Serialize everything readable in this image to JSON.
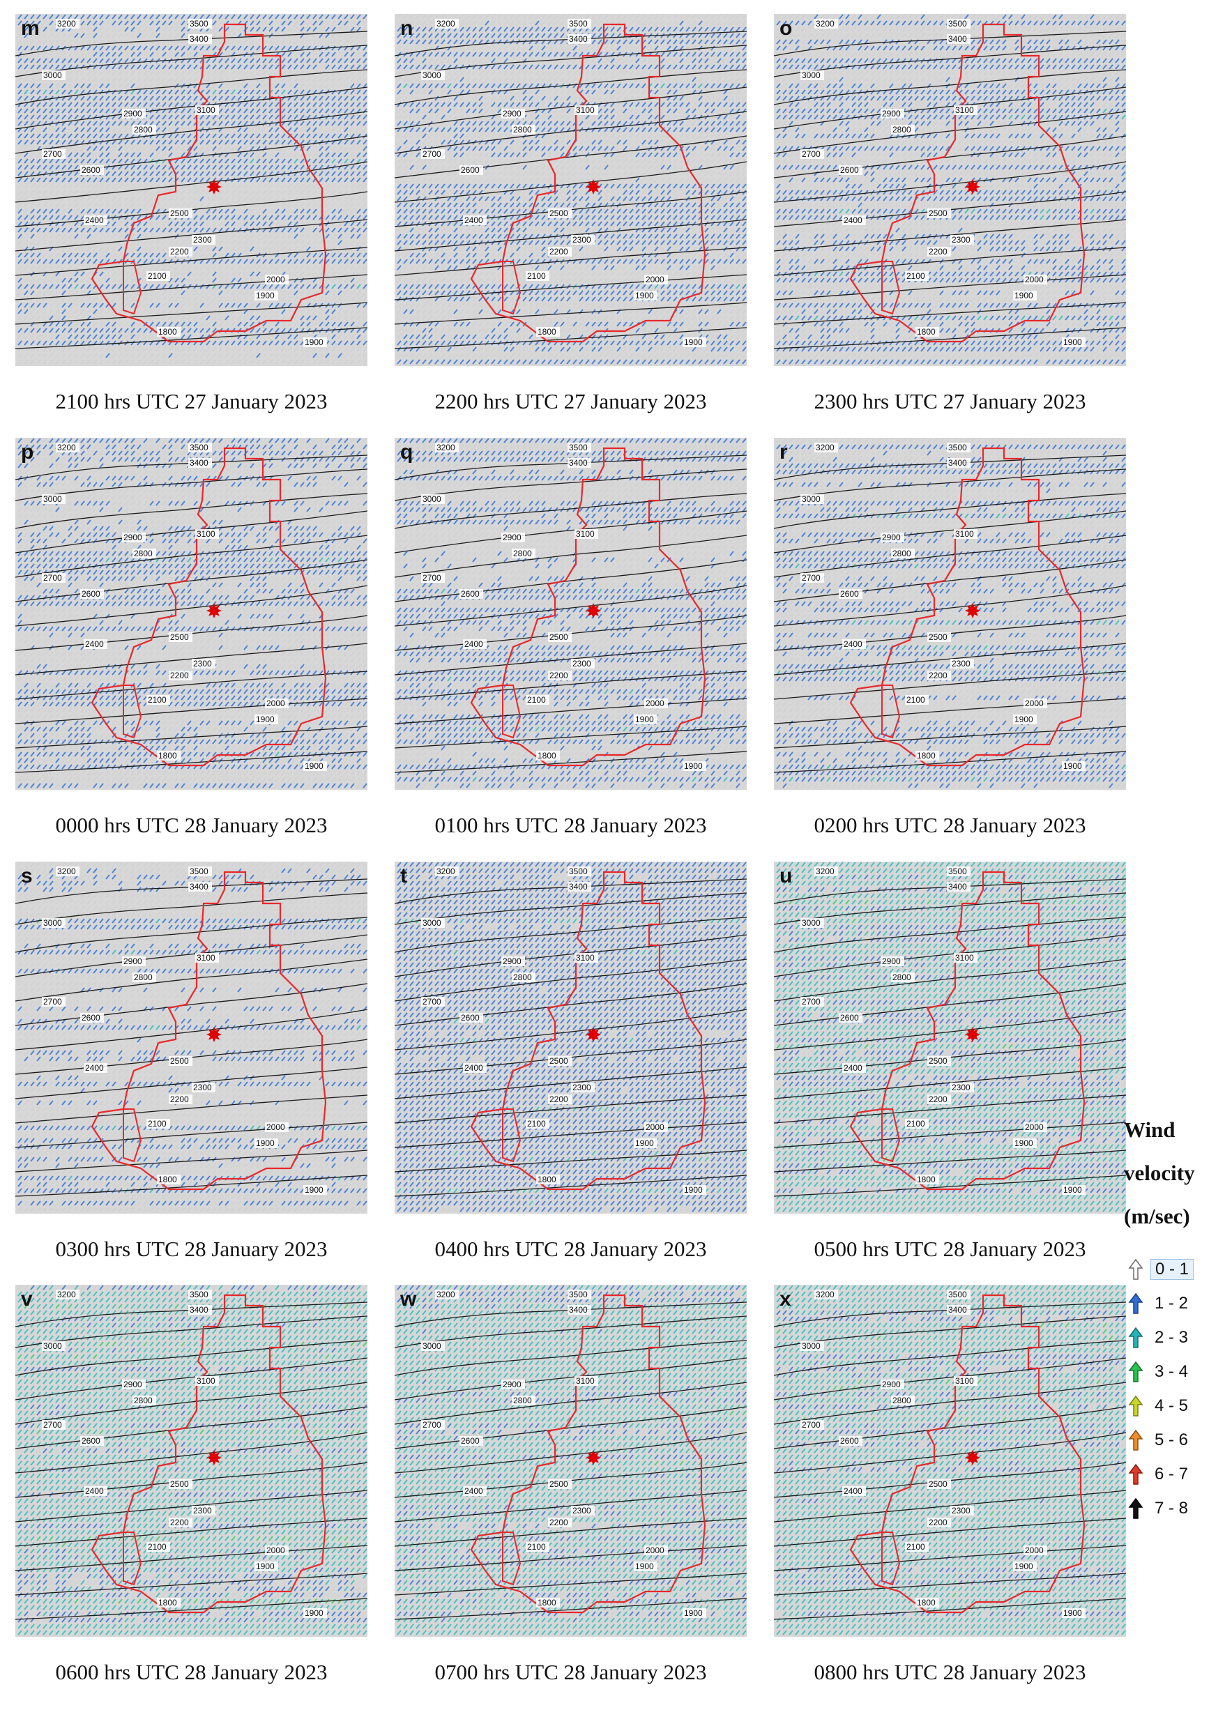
{
  "contour_labels": [
    "3200",
    "3500",
    "3400",
    "3000",
    "2900",
    "3100",
    "2800",
    "2700",
    "2600",
    "2500",
    "2400",
    "2300",
    "2200",
    "2100",
    "2000",
    "1900",
    "1800",
    "1900"
  ],
  "panels": [
    {
      "letter": "m",
      "caption": "2100 hrs UTC 27 January 2023",
      "wind": {
        "gray": 0.45,
        "blue": 0.5,
        "teal": 0.05
      }
    },
    {
      "letter": "n",
      "caption": "2200 hrs UTC 27 January 2023",
      "wind": {
        "gray": 0.45,
        "blue": 0.5,
        "teal": 0.05
      }
    },
    {
      "letter": "o",
      "caption": "2300 hrs UTC 27 January 2023",
      "wind": {
        "gray": 0.5,
        "blue": 0.45,
        "teal": 0.05
      }
    },
    {
      "letter": "p",
      "caption": "0000 hrs UTC 28 January 2023",
      "wind": {
        "gray": 0.45,
        "blue": 0.5,
        "teal": 0.05
      }
    },
    {
      "letter": "q",
      "caption": "0100 hrs UTC 28 January 2023",
      "wind": {
        "gray": 0.5,
        "blue": 0.45,
        "teal": 0.05
      }
    },
    {
      "letter": "r",
      "caption": "0200 hrs UTC 28 January 2023",
      "wind": {
        "gray": 0.5,
        "blue": 0.4,
        "teal": 0.1
      }
    },
    {
      "letter": "s",
      "caption": "0300 hrs UTC 28 January 2023",
      "wind": {
        "gray": 0.6,
        "blue": 0.35,
        "teal": 0.05
      }
    },
    {
      "letter": "t",
      "caption": "0400 hrs UTC 28 January 2023",
      "wind": {
        "gray": 0.1,
        "blue": 0.75,
        "teal": 0.15
      }
    },
    {
      "letter": "u",
      "caption": "0500 hrs UTC 28 January 2023",
      "wind": {
        "gray": 0.1,
        "blue": 0.25,
        "teal": 0.6,
        "green": 0.05
      }
    },
    {
      "letter": "v",
      "caption": "0600 hrs UTC 28 January 2023",
      "wind": {
        "gray": 0.1,
        "blue": 0.2,
        "teal": 0.6,
        "green": 0.1
      }
    },
    {
      "letter": "w",
      "caption": "0700 hrs UTC 28 January 2023",
      "wind": {
        "gray": 0.1,
        "blue": 0.2,
        "teal": 0.65,
        "green": 0.05
      }
    },
    {
      "letter": "x",
      "caption": "0800 hrs UTC 28 January 2023",
      "wind": {
        "gray": 0.1,
        "blue": 0.2,
        "teal": 0.65,
        "green": 0.05
      }
    }
  ],
  "legend": {
    "title_line1": "Wind",
    "title_line2": "velocity",
    "title_line3": "(m/sec)",
    "items": [
      {
        "label": "0 - 1",
        "color": "#ffffff",
        "stroke": "#6b6b6b"
      },
      {
        "label": "1 - 2",
        "color": "#2f6fd6",
        "stroke": "#1a3f80"
      },
      {
        "label": "2 - 3",
        "color": "#26b5b8",
        "stroke": "#146a6c"
      },
      {
        "label": "3 - 4",
        "color": "#27c24f",
        "stroke": "#16702d"
      },
      {
        "label": "4 - 5",
        "color": "#c8d62c",
        "stroke": "#76801a"
      },
      {
        "label": "5 - 6",
        "color": "#ef8c2c",
        "stroke": "#8a5018"
      },
      {
        "label": "6 - 7",
        "color": "#e23b26",
        "stroke": "#861f14"
      },
      {
        "label": "7 - 8",
        "color": "#111111",
        "stroke": "#000000"
      }
    ]
  },
  "colors": {
    "gray": "#d2d2d2",
    "blue": "#4d83d6",
    "teal": "#49c0c0",
    "green": "#4fcf7a",
    "contour": "#1b1b1b",
    "boundary": "#e8282b",
    "marker": "#e00000"
  }
}
